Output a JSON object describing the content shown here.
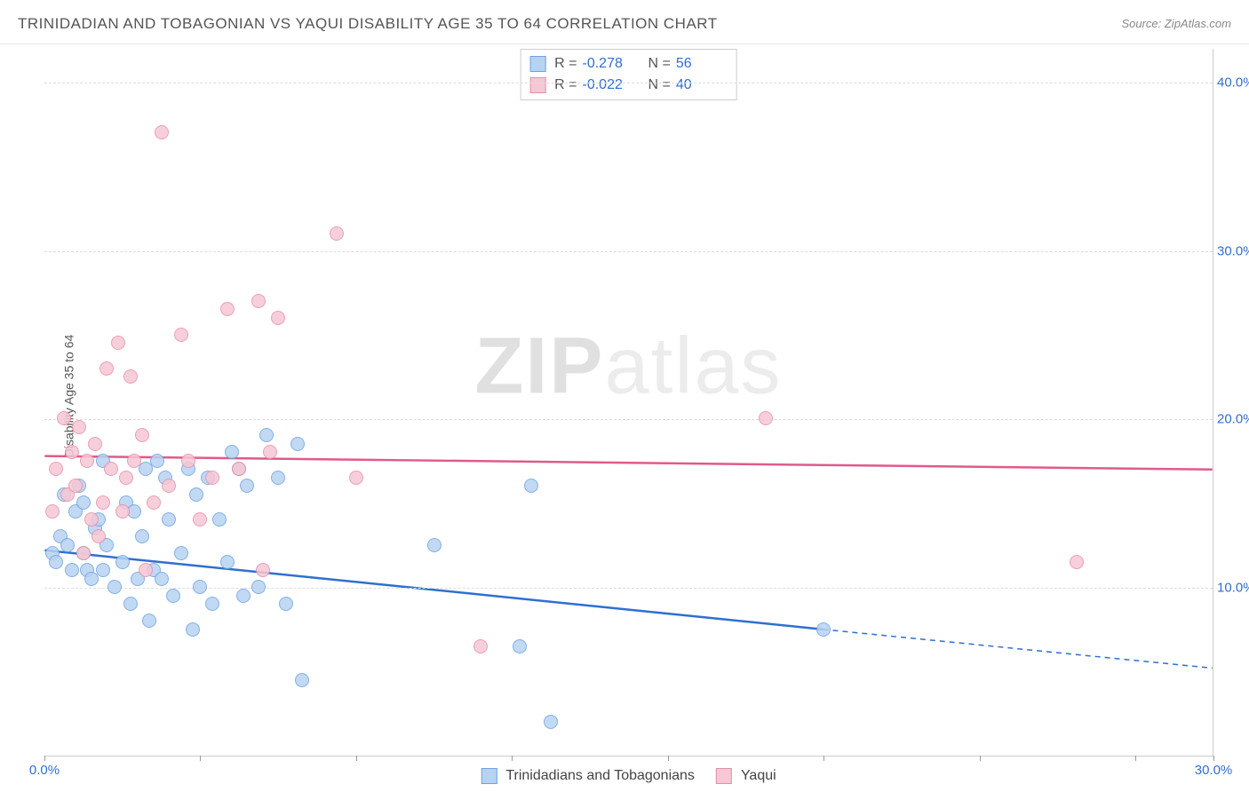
{
  "title": "TRINIDADIAN AND TOBAGONIAN VS YAQUI DISABILITY AGE 35 TO 64 CORRELATION CHART",
  "source_prefix": "Source: ",
  "source": "ZipAtlas.com",
  "ylabel": "Disability Age 35 to 64",
  "watermark_a": "ZIP",
  "watermark_b": "atlas",
  "chart": {
    "type": "scatter",
    "xlim": [
      0,
      30
    ],
    "ylim": [
      0,
      42
    ],
    "x_ticks": [
      0,
      4,
      8,
      12,
      16,
      20,
      24,
      28,
      30
    ],
    "x_tick_labels": {
      "0": "0.0%",
      "30": "30.0%"
    },
    "y_gridlines": [
      10,
      20,
      30,
      40
    ],
    "y_tick_labels": {
      "10": "10.0%",
      "20": "20.0%",
      "30": "30.0%",
      "40": "40.0%"
    },
    "x_label_color": "#2f6fd0",
    "y_label_color": "#2f6fd0",
    "grid_color": "#dddddd",
    "background": "#ffffff",
    "dot_radius": 8,
    "series": [
      {
        "name": "Trinidadians and Tobagonians",
        "fill": "#b7d3f2",
        "stroke": "#6fa3e0",
        "line_color": "#2f6fd0",
        "R_label": "R =",
        "R": "-0.278",
        "N_label": "N =",
        "N": "56",
        "trend": {
          "x1": 0,
          "y1": 12.2,
          "x2": 20,
          "y2": 7.5,
          "dash_x2": 30,
          "dash_y2": 5.2
        },
        "points": [
          [
            0.2,
            12.0
          ],
          [
            0.3,
            11.5
          ],
          [
            0.4,
            13.0
          ],
          [
            0.5,
            15.5
          ],
          [
            0.6,
            12.5
          ],
          [
            0.7,
            11.0
          ],
          [
            0.8,
            14.5
          ],
          [
            0.9,
            16.0
          ],
          [
            1.0,
            12.0
          ],
          [
            1.1,
            11.0
          ],
          [
            1.2,
            10.5
          ],
          [
            1.3,
            13.5
          ],
          [
            1.4,
            14.0
          ],
          [
            1.5,
            11.0
          ],
          [
            1.6,
            12.5
          ],
          [
            1.8,
            10.0
          ],
          [
            2.0,
            11.5
          ],
          [
            2.1,
            15.0
          ],
          [
            2.2,
            9.0
          ],
          [
            2.3,
            14.5
          ],
          [
            2.4,
            10.5
          ],
          [
            2.5,
            13.0
          ],
          [
            2.6,
            17.0
          ],
          [
            2.7,
            8.0
          ],
          [
            2.8,
            11.0
          ],
          [
            3.0,
            10.5
          ],
          [
            3.1,
            16.5
          ],
          [
            3.2,
            14.0
          ],
          [
            3.3,
            9.5
          ],
          [
            3.5,
            12.0
          ],
          [
            3.7,
            17.0
          ],
          [
            3.8,
            7.5
          ],
          [
            4.0,
            10.0
          ],
          [
            4.2,
            16.5
          ],
          [
            4.3,
            9.0
          ],
          [
            4.5,
            14.0
          ],
          [
            4.7,
            11.5
          ],
          [
            5.0,
            17.0
          ],
          [
            5.1,
            9.5
          ],
          [
            5.2,
            16.0
          ],
          [
            5.5,
            10.0
          ],
          [
            5.7,
            19.0
          ],
          [
            6.0,
            16.5
          ],
          [
            6.2,
            9.0
          ],
          [
            6.5,
            18.5
          ],
          [
            6.6,
            4.5
          ],
          [
            10.0,
            12.5
          ],
          [
            12.5,
            16.0
          ],
          [
            13.0,
            2.0
          ],
          [
            12.2,
            6.5
          ],
          [
            20.0,
            7.5
          ],
          [
            1.0,
            15.0
          ],
          [
            1.5,
            17.5
          ],
          [
            4.8,
            18.0
          ],
          [
            3.9,
            15.5
          ],
          [
            2.9,
            17.5
          ]
        ]
      },
      {
        "name": "Yaqui",
        "fill": "#f6c7d4",
        "stroke": "#e88fa8",
        "line_color": "#e05a8a",
        "R_label": "R =",
        "R": "-0.022",
        "N_label": "N =",
        "N": "40",
        "trend": {
          "x1": 0,
          "y1": 17.8,
          "x2": 30,
          "y2": 17.0
        },
        "points": [
          [
            0.2,
            14.5
          ],
          [
            0.3,
            17.0
          ],
          [
            0.5,
            20.0
          ],
          [
            0.6,
            15.5
          ],
          [
            0.7,
            18.0
          ],
          [
            0.8,
            16.0
          ],
          [
            0.9,
            19.5
          ],
          [
            1.0,
            12.0
          ],
          [
            1.1,
            17.5
          ],
          [
            1.2,
            14.0
          ],
          [
            1.3,
            18.5
          ],
          [
            1.5,
            15.0
          ],
          [
            1.6,
            23.0
          ],
          [
            1.7,
            17.0
          ],
          [
            1.9,
            24.5
          ],
          [
            2.0,
            14.5
          ],
          [
            2.1,
            16.5
          ],
          [
            2.3,
            17.5
          ],
          [
            2.5,
            19.0
          ],
          [
            2.6,
            11.0
          ],
          [
            2.8,
            15.0
          ],
          [
            3.0,
            37.0
          ],
          [
            3.2,
            16.0
          ],
          [
            3.5,
            25.0
          ],
          [
            3.7,
            17.5
          ],
          [
            4.0,
            14.0
          ],
          [
            4.3,
            16.5
          ],
          [
            4.7,
            26.5
          ],
          [
            5.0,
            17.0
          ],
          [
            5.5,
            27.0
          ],
          [
            5.6,
            11.0
          ],
          [
            5.8,
            18.0
          ],
          [
            6.0,
            26.0
          ],
          [
            7.5,
            31.0
          ],
          [
            8.0,
            16.5
          ],
          [
            11.2,
            6.5
          ],
          [
            18.5,
            20.0
          ],
          [
            26.5,
            11.5
          ],
          [
            2.2,
            22.5
          ],
          [
            1.4,
            13.0
          ]
        ]
      }
    ]
  }
}
